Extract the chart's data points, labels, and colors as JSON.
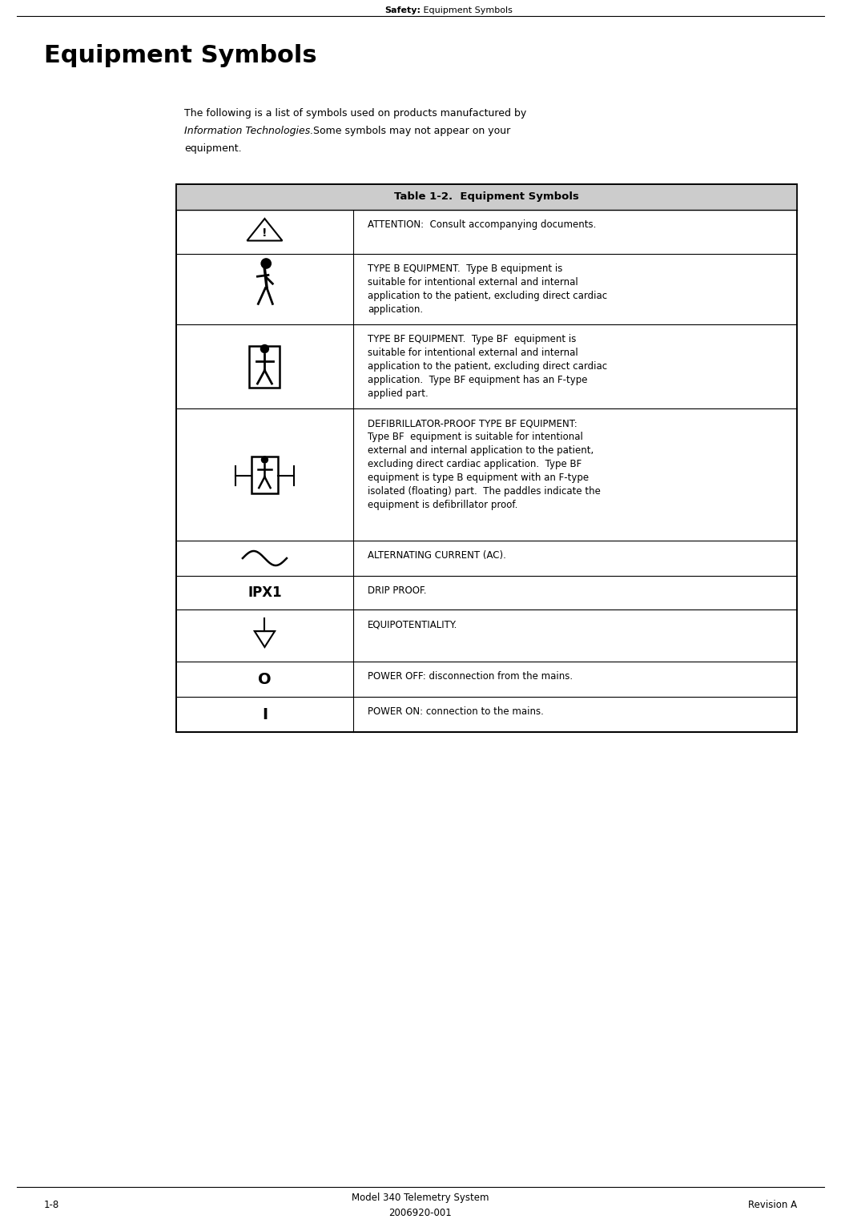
{
  "page_width": 10.5,
  "page_height": 15.37,
  "bg_color": "#ffffff",
  "header_bold": "Safety:",
  "header_regular": " Equipment Symbols",
  "main_title": "Equipment Symbols",
  "intro_line1": "The following is a list of symbols used on products manufactured by",
  "intro_line2_italic": "Information Technologies.",
  "intro_line2_rest": "  Some symbols may not appear on your",
  "intro_line3": "equipment.",
  "table_title": "Table 1-2.  Equipment Symbols",
  "footer_left": "1-8",
  "footer_center1": "Model 340 Telemetry System",
  "footer_center2": "2006920-001",
  "footer_right": "Revision A",
  "rows": [
    {
      "symbol_type": "warning_triangle",
      "description": "ATTENTION:  Consult accompanying documents."
    },
    {
      "symbol_type": "person_type_b",
      "description": "TYPE B EQUIPMENT.  Type B equipment is\nsuitable for intentional external and internal\napplication to the patient, excluding direct cardiac\napplication."
    },
    {
      "symbol_type": "person_box_bf",
      "description": "TYPE BF EQUIPMENT.  Type BF  equipment is\nsuitable for intentional external and internal\napplication to the patient, excluding direct cardiac\napplication.  Type BF equipment has an F-type\napplied part."
    },
    {
      "symbol_type": "person_box_bf_paddles",
      "description": "DEFIBRILLATOR-PROOF TYPE BF EQUIPMENT:\nType BF  equipment is suitable for intentional\nexternal and internal application to the patient,\nexcluding direct cardiac application.  Type BF\nequipment is type B equipment with an F-type\nisolated (floating) part.  The paddles indicate the\nequipment is defibrillator proof."
    },
    {
      "symbol_type": "ac_wave",
      "description": "ALTERNATING CURRENT (AC)."
    },
    {
      "symbol_type": "ipx1_text",
      "description": "DRIP PROOF."
    },
    {
      "symbol_type": "equipotential",
      "description": "EQUIPOTENTIALITY."
    },
    {
      "symbol_type": "power_off",
      "description": "POWER OFF: disconnection from the mains."
    },
    {
      "symbol_type": "power_on",
      "description": "POWER ON: connection to the mains."
    }
  ]
}
